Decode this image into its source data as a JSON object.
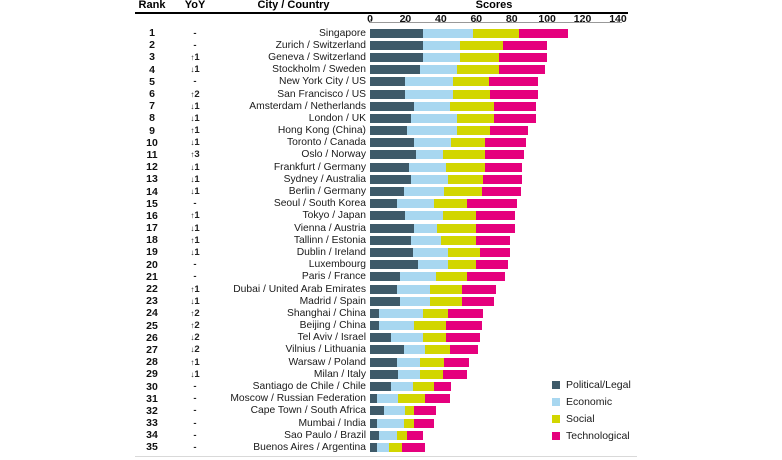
{
  "table": {
    "headers": {
      "rank": "Rank",
      "yoy": "YoY",
      "city": "City / Country",
      "scores": "Scores"
    }
  },
  "axis": {
    "ticks": [
      0,
      20,
      40,
      60,
      80,
      100,
      120,
      140
    ],
    "max": 140
  },
  "legend": {
    "position": "bottom-right",
    "items": [
      {
        "label": "Political/Legal",
        "color": "#3e5a69"
      },
      {
        "label": "Economic",
        "color": "#a8d7f0"
      },
      {
        "label": "Social",
        "color": "#d2d600"
      },
      {
        "label": "Technological",
        "color": "#e5007d"
      }
    ]
  },
  "chart_data": {
    "type": "bar",
    "orientation": "horizontal",
    "stacked": true,
    "title": "Scores",
    "xlim": [
      0,
      140
    ],
    "series_names": [
      "Political/Legal",
      "Economic",
      "Social",
      "Technological"
    ],
    "series_colors": [
      "#3e5a69",
      "#a8d7f0",
      "#d2d600",
      "#e5007d"
    ],
    "rows": [
      {
        "rank": 1,
        "yoy": "-",
        "city": "Singapore",
        "values": [
          30,
          28,
          26,
          28
        ]
      },
      {
        "rank": 2,
        "yoy": "-",
        "city": "Zurich / Switzerland",
        "values": [
          30,
          21,
          24,
          25
        ]
      },
      {
        "rank": 3,
        "yoy": "↑1",
        "city": "Geneva / Switzerland",
        "values": [
          30,
          21,
          22,
          27
        ]
      },
      {
        "rank": 4,
        "yoy": "↓1",
        "city": "Stockholm / Sweden",
        "values": [
          28,
          21,
          24,
          26
        ]
      },
      {
        "rank": 5,
        "yoy": "-",
        "city": "New York City / US",
        "values": [
          20,
          27,
          20,
          28
        ]
      },
      {
        "rank": 6,
        "yoy": "↑2",
        "city": "San Francisco / US",
        "values": [
          20,
          27,
          21,
          27
        ]
      },
      {
        "rank": 7,
        "yoy": "↓1",
        "city": "Amsterdam / Netherlands",
        "values": [
          25,
          20,
          25,
          24
        ]
      },
      {
        "rank": 8,
        "yoy": "↓1",
        "city": "London / UK",
        "values": [
          23,
          26,
          21,
          24
        ]
      },
      {
        "rank": 9,
        "yoy": "↑1",
        "city": "Hong Kong (China)",
        "values": [
          21,
          28,
          19,
          21
        ]
      },
      {
        "rank": 10,
        "yoy": "↓1",
        "city": "Toronto / Canada",
        "values": [
          25,
          21,
          19,
          23
        ]
      },
      {
        "rank": 11,
        "yoy": "↑3",
        "city": "Oslo / Norway",
        "values": [
          26,
          15,
          24,
          22
        ]
      },
      {
        "rank": 12,
        "yoy": "↓1",
        "city": "Frankfurt / Germany",
        "values": [
          22,
          21,
          22,
          21
        ]
      },
      {
        "rank": 13,
        "yoy": "↓1",
        "city": "Sydney / Australia",
        "values": [
          23,
          21,
          20,
          22
        ]
      },
      {
        "rank": 14,
        "yoy": "↓1",
        "city": "Berlin / Germany",
        "values": [
          19,
          23,
          21,
          22
        ]
      },
      {
        "rank": 15,
        "yoy": "-",
        "city": "Seoul / South Korea",
        "values": [
          15,
          21,
          19,
          28
        ]
      },
      {
        "rank": 16,
        "yoy": "↑1",
        "city": "Tokyo / Japan",
        "values": [
          20,
          21,
          19,
          22
        ]
      },
      {
        "rank": 17,
        "yoy": "↓1",
        "city": "Vienna / Austria",
        "values": [
          25,
          13,
          22,
          22
        ]
      },
      {
        "rank": 18,
        "yoy": "↑1",
        "city": "Tallinn / Estonia",
        "values": [
          23,
          17,
          20,
          19
        ]
      },
      {
        "rank": 19,
        "yoy": "↓1",
        "city": "Dublin / Ireland",
        "values": [
          24,
          20,
          18,
          17
        ]
      },
      {
        "rank": 20,
        "yoy": "-",
        "city": "Luxembourg",
        "values": [
          27,
          17,
          16,
          18
        ]
      },
      {
        "rank": 21,
        "yoy": "-",
        "city": "Paris / France",
        "values": [
          17,
          20,
          18,
          21
        ]
      },
      {
        "rank": 22,
        "yoy": "↑1",
        "city": "Dubai / United Arab Emirates",
        "values": [
          15,
          19,
          18,
          19
        ]
      },
      {
        "rank": 23,
        "yoy": "↓1",
        "city": "Madrid / Spain",
        "values": [
          17,
          17,
          18,
          18
        ]
      },
      {
        "rank": 24,
        "yoy": "↑2",
        "city": "Shanghai / China",
        "values": [
          5,
          25,
          14,
          20
        ]
      },
      {
        "rank": 25,
        "yoy": "↑2",
        "city": "Beijing / China",
        "values": [
          5,
          20,
          18,
          20
        ]
      },
      {
        "rank": 26,
        "yoy": "↓2",
        "city": "Tel Aviv / Israel",
        "values": [
          12,
          18,
          13,
          19
        ]
      },
      {
        "rank": 27,
        "yoy": "↓2",
        "city": "Vilnius / Lithuania",
        "values": [
          19,
          12,
          14,
          16
        ]
      },
      {
        "rank": 28,
        "yoy": "↑1",
        "city": "Warsaw / Poland",
        "values": [
          15,
          13,
          14,
          14
        ]
      },
      {
        "rank": 29,
        "yoy": "↓1",
        "city": "Milan / Italy",
        "values": [
          16,
          12,
          13,
          14
        ]
      },
      {
        "rank": 30,
        "yoy": "-",
        "city": "Santiago de Chile / Chile",
        "values": [
          12,
          12,
          12,
          10
        ]
      },
      {
        "rank": 31,
        "yoy": "-",
        "city": "Moscow / Russian Federation",
        "values": [
          4,
          12,
          15,
          14
        ]
      },
      {
        "rank": 32,
        "yoy": "-",
        "city": "Cape Town / South Africa",
        "values": [
          8,
          12,
          5,
          12
        ]
      },
      {
        "rank": 33,
        "yoy": "-",
        "city": "Mumbai / India",
        "values": [
          4,
          15,
          6,
          11
        ]
      },
      {
        "rank": 34,
        "yoy": "-",
        "city": "Sao Paulo / Brazil",
        "values": [
          5,
          10,
          6,
          9
        ]
      },
      {
        "rank": 35,
        "yoy": "-",
        "city": "Buenos Aires / Argentina",
        "values": [
          4,
          7,
          7,
          13
        ]
      }
    ]
  }
}
